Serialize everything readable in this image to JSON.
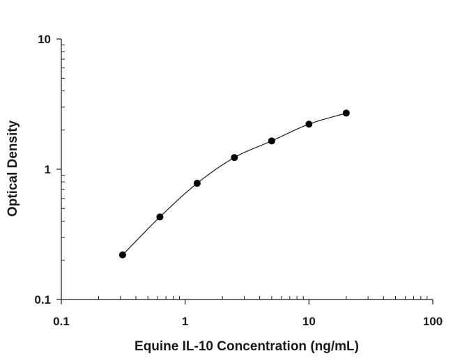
{
  "chart_data": {
    "type": "scatter",
    "xlabel": "Equine IL-10 Concentration (ng/mL)",
    "ylabel": "Optical Density",
    "x_scale": "log",
    "y_scale": "log",
    "xlim": [
      0.1,
      100
    ],
    "ylim": [
      0.1,
      10
    ],
    "x_ticks": [
      "0.1",
      "1",
      "10",
      "100"
    ],
    "y_ticks": [
      "0.1",
      "1",
      "10"
    ],
    "grid": false,
    "fit_line": true,
    "series": [
      {
        "x": [
          0.3125,
          0.625,
          1.25,
          2.5,
          5,
          10,
          20
        ],
        "y": [
          0.22,
          0.43,
          0.78,
          1.23,
          1.65,
          2.22,
          2.7
        ]
      }
    ],
    "colors": {
      "axis": "#1a1a1a",
      "points": "#000000",
      "curve": "#1a1a1a"
    }
  }
}
